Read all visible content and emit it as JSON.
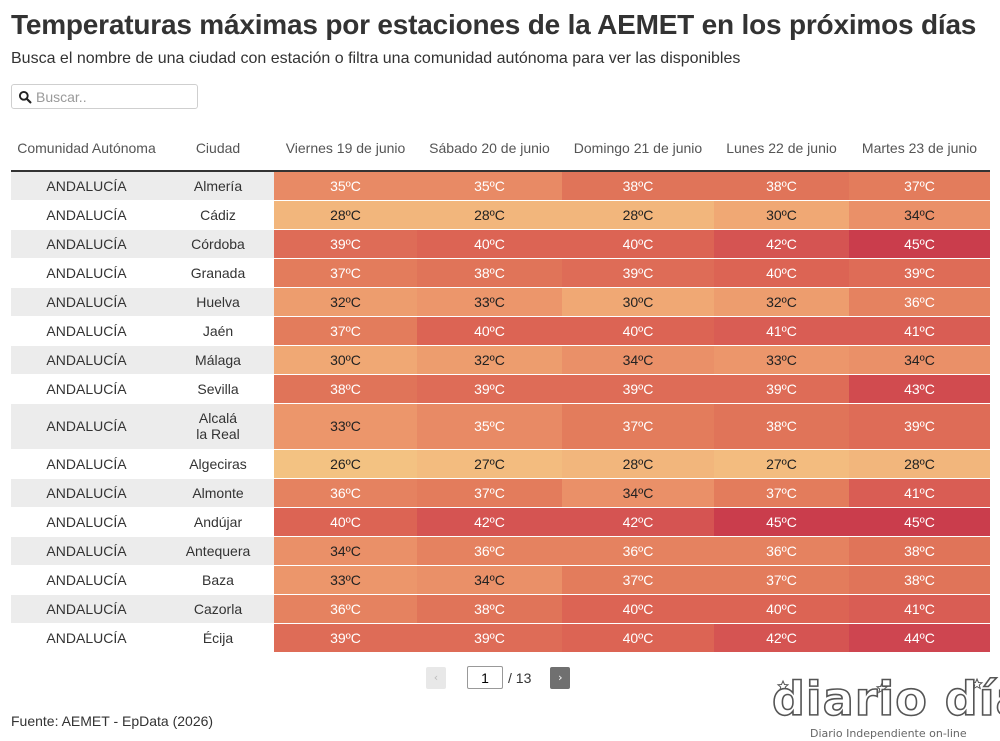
{
  "title": "Temperaturas máximas por estaciones de la AEMET en los próximos días",
  "subtitle": "Busca el nombre de una ciudad con estación o filtra una comunidad autónoma para ver las disponibles",
  "search": {
    "placeholder": "Buscar..",
    "value": ""
  },
  "table": {
    "headers": [
      "Comunidad Autónoma",
      "Ciudad",
      "Viernes 19 de junio",
      "Sábado 20 de junio",
      "Domingo 21 de junio",
      "Lunes 22 de junio",
      "Martes 23 de junio"
    ],
    "rows": [
      {
        "comunidad": "ANDALUCÍA",
        "ciudad": "Almería",
        "temps": [
          "35ºC",
          "35ºC",
          "38ºC",
          "38ºC",
          "37ºC"
        ]
      },
      {
        "comunidad": "ANDALUCÍA",
        "ciudad": "Cádiz",
        "temps": [
          "28ºC",
          "28ºC",
          "28ºC",
          "30ºC",
          "34ºC"
        ]
      },
      {
        "comunidad": "ANDALUCÍA",
        "ciudad": "Córdoba",
        "temps": [
          "39ºC",
          "40ºC",
          "40ºC",
          "42ºC",
          "45ºC"
        ]
      },
      {
        "comunidad": "ANDALUCÍA",
        "ciudad": "Granada",
        "temps": [
          "37ºC",
          "38ºC",
          "39ºC",
          "40ºC",
          "39ºC"
        ]
      },
      {
        "comunidad": "ANDALUCÍA",
        "ciudad": "Huelva",
        "temps": [
          "32ºC",
          "33ºC",
          "30ºC",
          "32ºC",
          "36ºC"
        ]
      },
      {
        "comunidad": "ANDALUCÍA",
        "ciudad": "Jaén",
        "temps": [
          "37ºC",
          "40ºC",
          "40ºC",
          "41ºC",
          "41ºC"
        ]
      },
      {
        "comunidad": "ANDALUCÍA",
        "ciudad": "Málaga",
        "temps": [
          "30ºC",
          "32ºC",
          "34ºC",
          "33ºC",
          "34ºC"
        ]
      },
      {
        "comunidad": "ANDALUCÍA",
        "ciudad": "Sevilla",
        "temps": [
          "38ºC",
          "39ºC",
          "39ºC",
          "39ºC",
          "43ºC"
        ]
      },
      {
        "comunidad": "ANDALUCÍA",
        "ciudad": "Alcalá la Real",
        "temps": [
          "33ºC",
          "35ºC",
          "37ºC",
          "38ºC",
          "39ºC"
        ]
      },
      {
        "comunidad": "ANDALUCÍA",
        "ciudad": "Algeciras",
        "temps": [
          "26ºC",
          "27ºC",
          "28ºC",
          "27ºC",
          "28ºC"
        ]
      },
      {
        "comunidad": "ANDALUCÍA",
        "ciudad": "Almonte",
        "temps": [
          "36ºC",
          "37ºC",
          "34ºC",
          "37ºC",
          "41ºC"
        ]
      },
      {
        "comunidad": "ANDALUCÍA",
        "ciudad": "Andújar",
        "temps": [
          "40ºC",
          "42ºC",
          "42ºC",
          "45ºC",
          "45ºC"
        ]
      },
      {
        "comunidad": "ANDALUCÍA",
        "ciudad": "Antequera",
        "temps": [
          "34ºC",
          "36ºC",
          "36ºC",
          "36ºC",
          "38ºC"
        ]
      },
      {
        "comunidad": "ANDALUCÍA",
        "ciudad": "Baza",
        "temps": [
          "33ºC",
          "34ºC",
          "37ºC",
          "37ºC",
          "38ºC"
        ]
      },
      {
        "comunidad": "ANDALUCÍA",
        "ciudad": "Cazorla",
        "temps": [
          "36ºC",
          "38ºC",
          "40ºC",
          "40ºC",
          "41ºC"
        ]
      },
      {
        "comunidad": "ANDALUCÍA",
        "ciudad": "Écija",
        "temps": [
          "39ºC",
          "39ºC",
          "40ºC",
          "42ºC",
          "44ºC"
        ]
      }
    ]
  },
  "pagination": {
    "current": "1",
    "total": "/ 13",
    "prev_icon": "chevron-left-icon",
    "next_icon": "chevron-right-icon"
  },
  "source": "Fuente: AEMET - EpData (2026)",
  "logo": {
    "text": "diario día",
    "tagline": "Diario Independiente on-line"
  },
  "colors": {
    "scale": {
      "26": "#f3c282",
      "27": "#f3bc7f",
      "28": "#f2b67c",
      "30": "#f0a874",
      "32": "#ed9d6e",
      "33": "#ec966b",
      "34": "#ea9068",
      "35": "#e88a65",
      "36": "#e58260",
      "37": "#e37c5c",
      "38": "#e07459",
      "39": "#de6c57",
      "40": "#dc6454",
      "41": "#d95d54",
      "42": "#d55452",
      "43": "#d14b4f",
      "44": "#ce4550",
      "45": "#ca3d4c"
    },
    "dark_text": [
      "26ºC",
      "27ºC",
      "28ºC",
      "30ºC",
      "32ºC",
      "33ºC",
      "34ºC"
    ]
  }
}
